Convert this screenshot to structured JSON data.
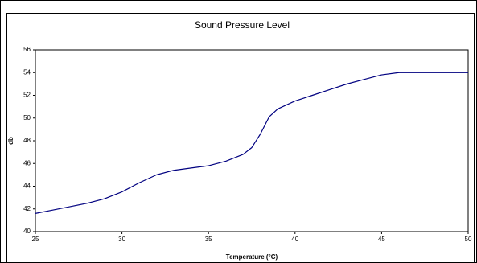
{
  "chart_data": {
    "type": "line",
    "title": "Sound Pressure Level",
    "x_label": "Temperature (°C)",
    "y_label": "db",
    "x": [
      25,
      26,
      27,
      28,
      29,
      30,
      31,
      32,
      33,
      34,
      35,
      36,
      37,
      37.5,
      38,
      38.5,
      39,
      40,
      41,
      42,
      43,
      44,
      45,
      46,
      47,
      48,
      49,
      50
    ],
    "series": [
      {
        "color": "#000080",
        "values": [
          41.6,
          41.9,
          42.2,
          42.5,
          42.9,
          43.5,
          44.3,
          45.0,
          45.4,
          45.6,
          45.8,
          46.2,
          46.8,
          47.4,
          48.6,
          50.1,
          50.8,
          51.5,
          52.0,
          52.5,
          53.0,
          53.4,
          53.8,
          54.0,
          54.0,
          54.0,
          54.0,
          54.0
        ]
      }
    ],
    "xlim": [
      25,
      50
    ],
    "xticks": [
      25,
      30,
      35,
      40,
      45,
      50
    ],
    "ylim": [
      40,
      56
    ],
    "yticks": [
      40,
      42,
      44,
      46,
      48,
      50,
      52,
      54,
      56
    ],
    "grid": false
  }
}
